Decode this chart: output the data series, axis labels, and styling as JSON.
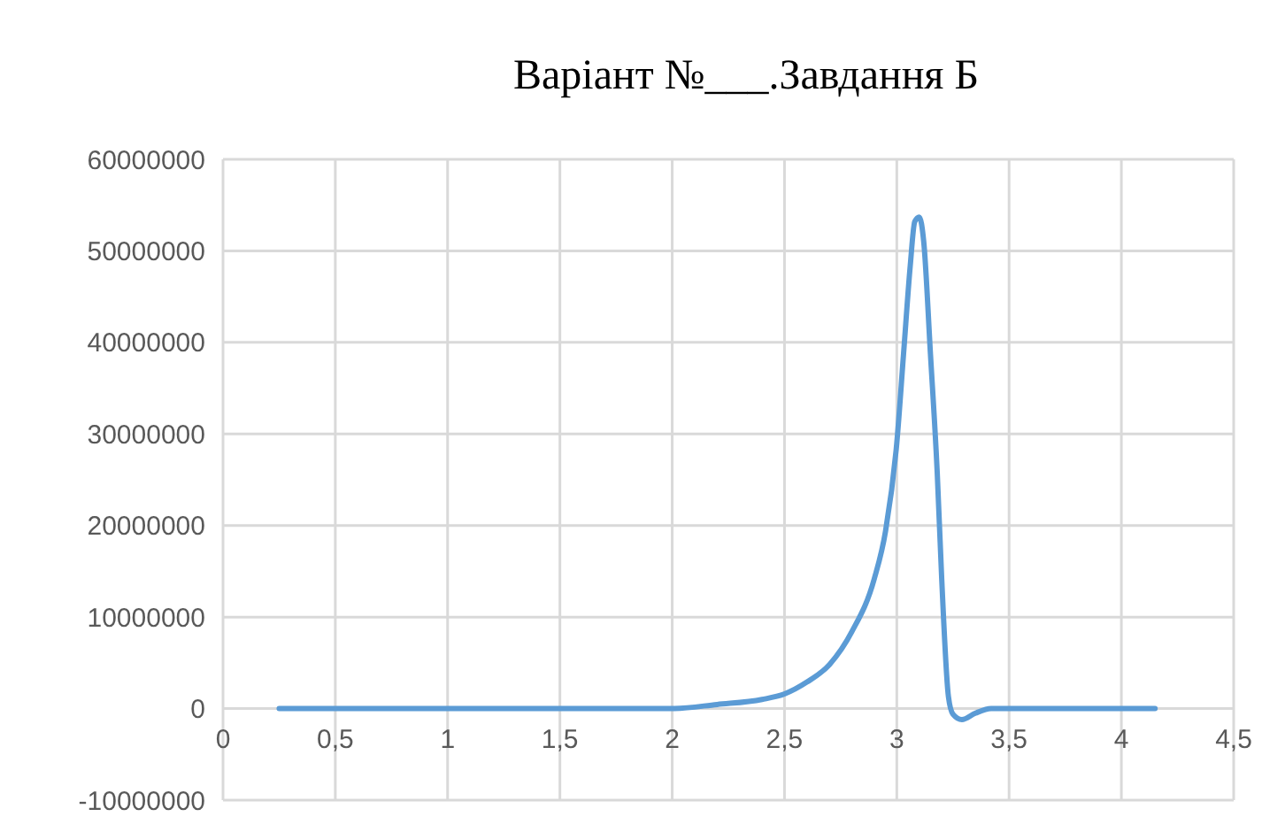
{
  "chart_data": {
    "type": "line",
    "title": "Варіант №___.Завдання Б",
    "x": [
      0.25,
      1.0,
      1.5,
      2.0,
      2.2,
      2.4,
      2.5,
      2.6,
      2.7,
      2.8,
      2.9,
      2.95,
      3.0,
      3.03,
      3.06,
      3.08,
      3.1,
      3.12,
      3.15,
      3.18,
      3.2,
      3.23,
      3.25,
      3.29,
      3.35,
      3.42,
      4.15
    ],
    "series": [
      {
        "color": "#5b9bd5",
        "values": [
          0,
          0,
          0,
          0,
          450000,
          1000000,
          1600000,
          2900000,
          4800000,
          8400000,
          14200000,
          19400000,
          29000000,
          38700000,
          48400000,
          53200000,
          53700000,
          51000000,
          38700000,
          25800000,
          14200000,
          1300000,
          -600000,
          -1200000,
          -500000,
          0,
          0
        ]
      }
    ],
    "xlim": [
      0,
      4.5
    ],
    "xticks": [
      0,
      {
        "value": 0.5,
        "label": "0,5"
      },
      1,
      {
        "value": 1.5,
        "label": "1,5"
      },
      2,
      {
        "value": 2.5,
        "label": "2,5"
      },
      3,
      {
        "value": 3.5,
        "label": "3,5"
      },
      4,
      {
        "value": 4.5,
        "label": "4,5"
      }
    ],
    "ylim": [
      -10000000,
      60000000
    ],
    "yticks": [
      -10000000,
      0,
      10000000,
      20000000,
      30000000,
      40000000,
      50000000,
      60000000
    ],
    "grid": true,
    "marker": "none",
    "line_style": "solid"
  }
}
